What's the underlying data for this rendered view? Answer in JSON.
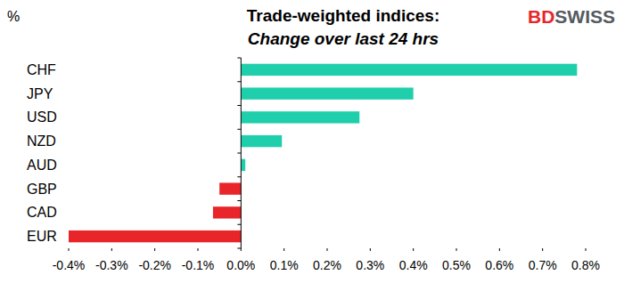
{
  "chart_data": {
    "type": "bar",
    "orientation": "horizontal",
    "title": "Trade-weighted indices:",
    "subtitle": "Change over last 24 hrs",
    "xlabel": "%",
    "annotations": [
      "BDSWISS"
    ],
    "categories": [
      "CHF",
      "JPY",
      "USD",
      "NZD",
      "AUD",
      "GBP",
      "CAD",
      "EUR"
    ],
    "values": [
      0.78,
      0.4,
      0.275,
      0.095,
      0.01,
      -0.05,
      -0.065,
      -0.4
    ],
    "colors": [
      "#1fcfac",
      "#1fcfac",
      "#1fcfac",
      "#1fcfac",
      "#1fcfac",
      "#e8262a",
      "#e8262a",
      "#e8262a"
    ],
    "xlim": [
      -0.4,
      0.8
    ],
    "xticks": [
      {
        "value": -0.4,
        "label": "-0.4%"
      },
      {
        "value": -0.3,
        "label": "-0.3%"
      },
      {
        "value": -0.2,
        "label": "-0.2%"
      },
      {
        "value": -0.1,
        "label": "-0.1%"
      },
      {
        "value": 0,
        "label": "0.0%"
      },
      {
        "value": 0.1,
        "label": "0.1%"
      },
      {
        "value": 0.2,
        "label": "0.2%"
      },
      {
        "value": 0.3,
        "label": "0.3%"
      },
      {
        "value": 0.4,
        "label": "0.4%"
      },
      {
        "value": 0.5,
        "label": "0.5%"
      },
      {
        "value": 0.6,
        "label": "0.6%"
      },
      {
        "value": 0.7,
        "label": "0.7%"
      },
      {
        "value": 0.8,
        "label": "0.8%"
      }
    ],
    "grid": false
  }
}
